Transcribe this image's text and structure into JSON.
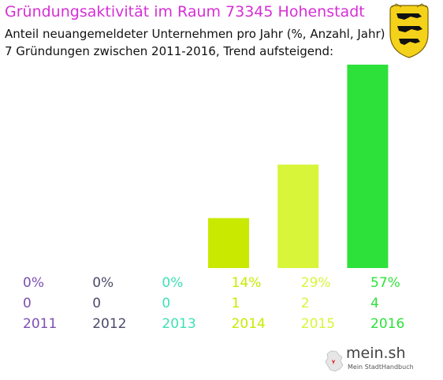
{
  "header": {
    "title": "Gründungsaktivität im Raum 73345 Hohenstadt",
    "subtitle_line1": "Anteil neuangemeldeter Unternehmen pro Jahr (%, Anzahl, Jahr)",
    "subtitle_line2": "7 Gründungen zwischen 2011-2016, Trend aufsteigend:"
  },
  "branding": {
    "name": "mein.sh",
    "tagline": "Mein StadtHandbuch"
  },
  "colors": {
    "title": "#d62fd6",
    "crest_field": "#f5d21a",
    "crest_lions": "#111111"
  },
  "chart_data": {
    "type": "bar",
    "categories": [
      "2011",
      "2012",
      "2013",
      "2014",
      "2015",
      "2016"
    ],
    "values": [
      0,
      0,
      0,
      14,
      29,
      57
    ],
    "counts": [
      0,
      0,
      0,
      1,
      2,
      4
    ],
    "percent_labels": [
      "0%",
      "0%",
      "0%",
      "14%",
      "29%",
      "57%"
    ],
    "count_labels": [
      "0",
      "0",
      "0",
      "1",
      "2",
      "4"
    ],
    "colors": [
      "#7d4fb0",
      "#4a4a6a",
      "#3fe0b5",
      "#c9ea00",
      "#d8f53a",
      "#2ee13a"
    ],
    "ylim": [
      0,
      57
    ],
    "grid": false,
    "legend": "none"
  }
}
